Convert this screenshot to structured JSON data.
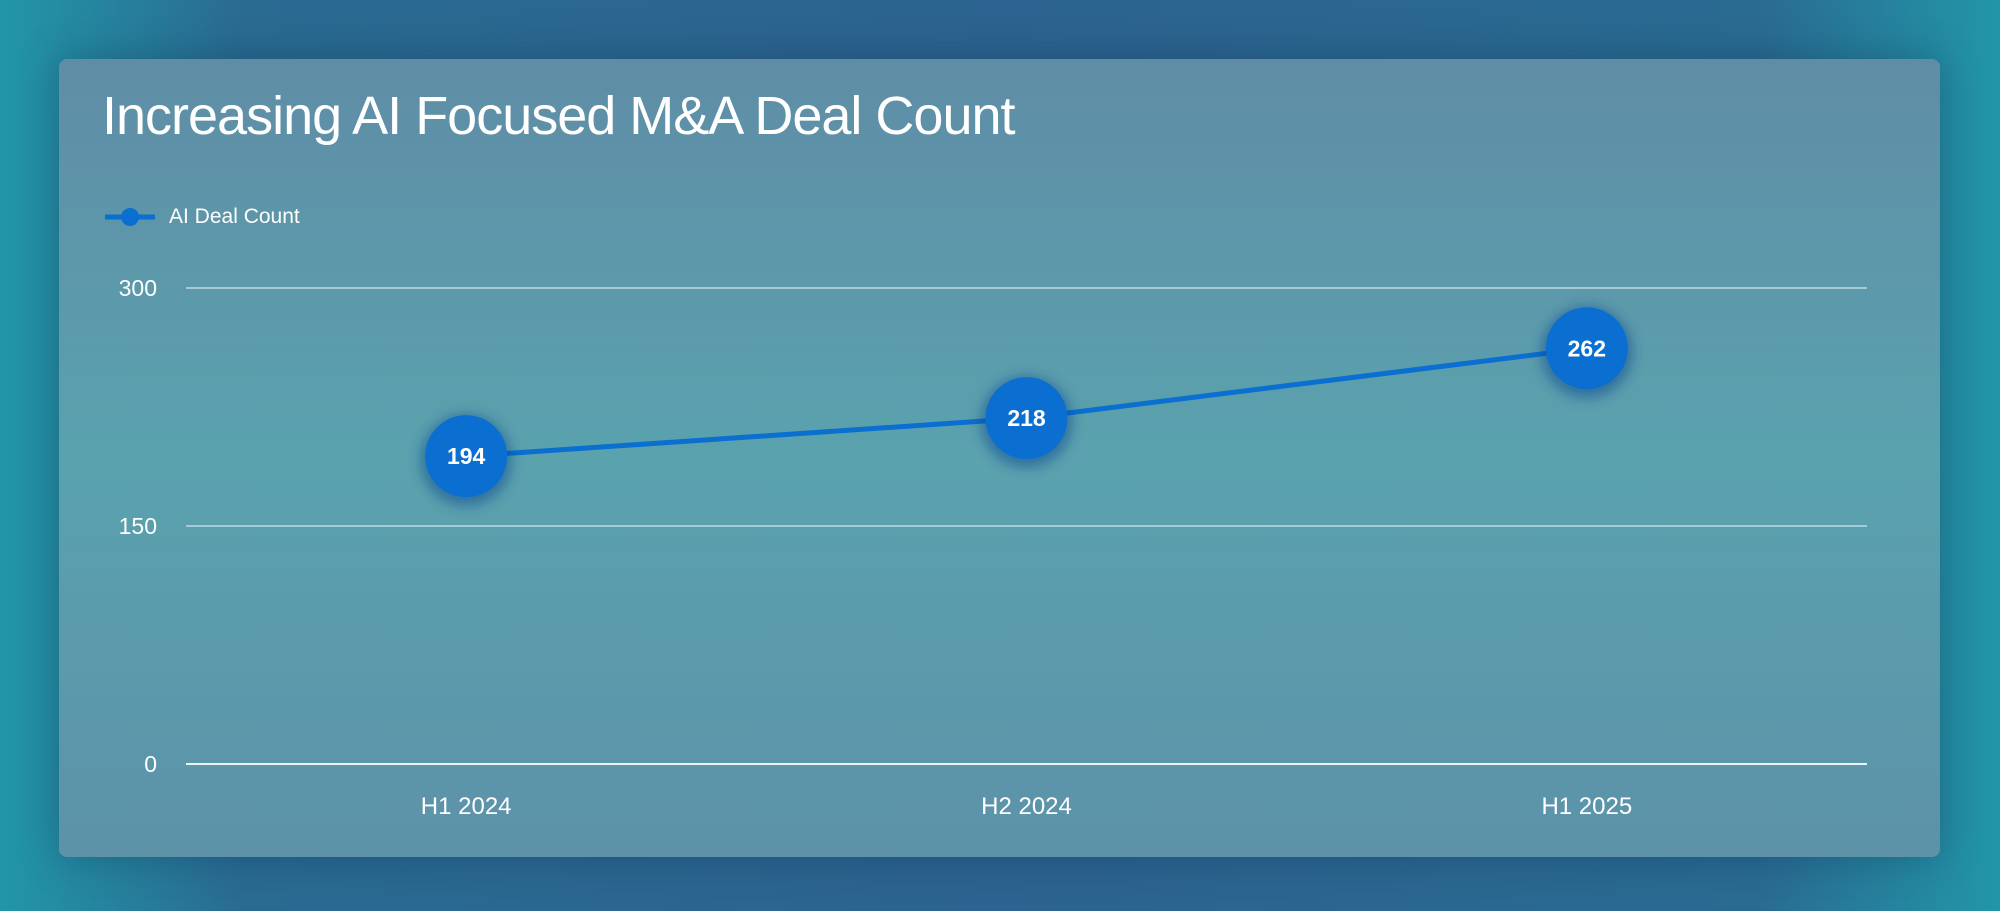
{
  "chart_data": {
    "type": "line",
    "title": "Increasing AI Focused M&A Deal Count",
    "categories": [
      "H1 2024",
      "H2 2024",
      "H1 2025"
    ],
    "series": [
      {
        "name": "AI Deal Count",
        "values": [
          194,
          218,
          262
        ],
        "color": "#0a6fd0"
      }
    ],
    "yticks": [
      "0",
      "150",
      "300"
    ],
    "ylim": [
      0,
      300
    ],
    "grid": true,
    "legend": "top-left",
    "data_labels": true
  }
}
